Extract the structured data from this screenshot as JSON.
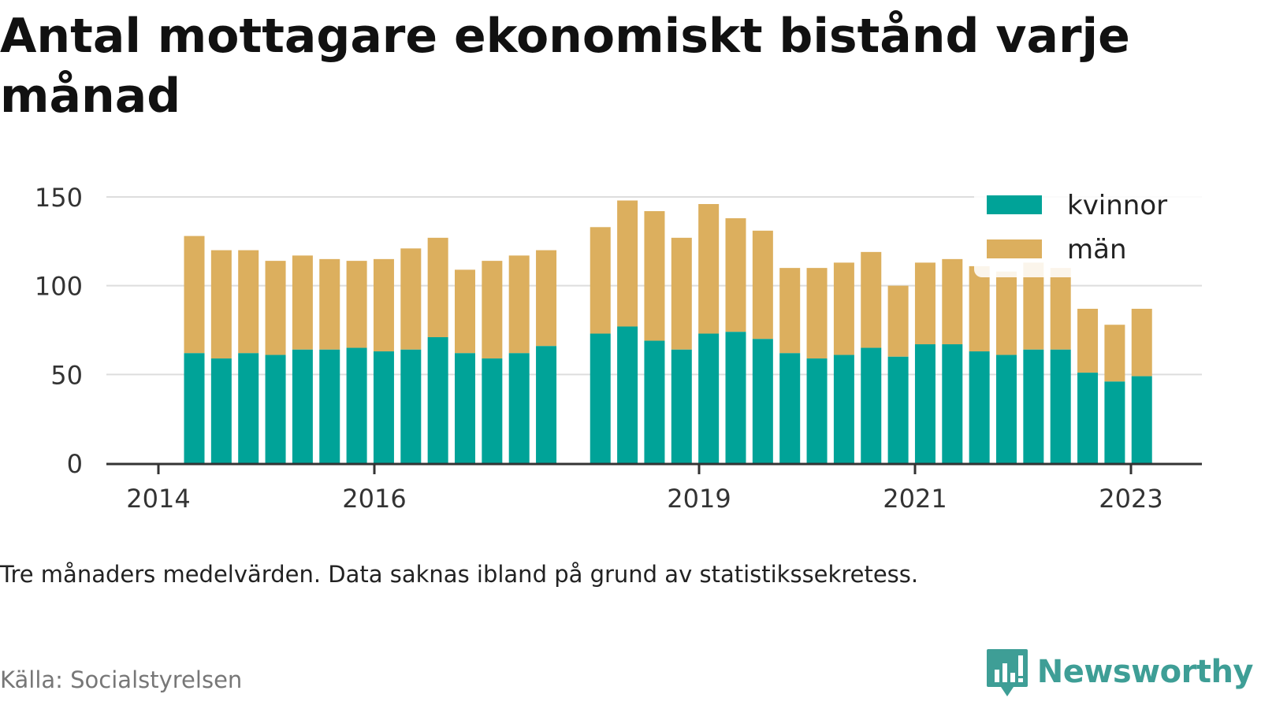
{
  "title": "Antal mottagare ekonomiskt bistånd varje månad",
  "caption": "Tre månaders medelvärden. Data saknas ibland på grund av statistikssekretess.",
  "source": "Källa: Socialstyrelsen",
  "brand": {
    "name": "Newsworthy",
    "icon": "bar-chart-speech-bubble-icon"
  },
  "colors": {
    "kvinnor": "#00a398",
    "man": "#dcaf5e",
    "axis": "#333333",
    "grid": "#dddddd",
    "brand": "#3e9e96"
  },
  "chart_data": {
    "type": "bar",
    "stacked": true,
    "x_tick_labels": [
      "2014",
      "2016",
      "2019",
      "2021",
      "2023"
    ],
    "y_ticks": [
      0,
      50,
      100,
      150
    ],
    "ylim": [
      0,
      150
    ],
    "grid": true,
    "legend_position": "top-right",
    "x": [
      "2014-05",
      "2014-08",
      "2014-11",
      "2015-02",
      "2015-05",
      "2015-08",
      "2015-11",
      "2016-02",
      "2016-05",
      "2016-08",
      "2016-11",
      "2017-02",
      "2017-05",
      "2017-08",
      null,
      "2018-05",
      "2018-08",
      "2018-11",
      "2019-02",
      "2019-05",
      "2019-08",
      "2019-11",
      "2020-02",
      "2020-05",
      "2020-08",
      "2020-11",
      "2021-02",
      "2021-05",
      "2021-08",
      "2021-11",
      "2022-02",
      "2022-05",
      "2022-08",
      "2022-11",
      "2023-02",
      "2023-05"
    ],
    "series": [
      {
        "name": "kvinnor",
        "values": [
          62,
          59,
          62,
          61,
          64,
          64,
          65,
          63,
          64,
          71,
          62,
          59,
          62,
          66,
          null,
          73,
          77,
          69,
          64,
          73,
          74,
          70,
          62,
          59,
          61,
          65,
          60,
          67,
          67,
          63,
          61,
          64,
          64,
          51,
          46,
          49
        ]
      },
      {
        "name": "män",
        "values": [
          66,
          61,
          58,
          53,
          53,
          51,
          49,
          52,
          57,
          56,
          47,
          55,
          55,
          54,
          null,
          60,
          71,
          73,
          63,
          73,
          64,
          61,
          48,
          51,
          52,
          54,
          40,
          46,
          48,
          48,
          47,
          49,
          46,
          36,
          32,
          38
        ]
      }
    ]
  }
}
